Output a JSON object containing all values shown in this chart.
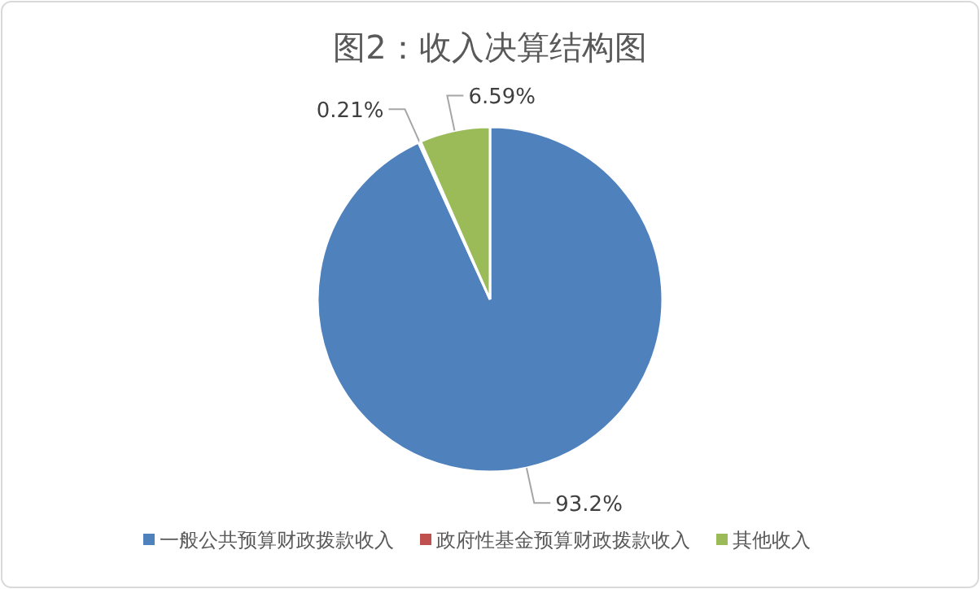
{
  "chart_data": {
    "type": "pie",
    "title": "图2：收入决算结构图",
    "categories": [
      "一般公共预算财政拨款收入",
      "政府性基金预算财政拨款收入",
      "其他收入"
    ],
    "values": [
      93.2,
      0.21,
      6.59
    ],
    "value_labels": [
      "93.2%",
      "0.21%",
      "6.59%"
    ],
    "colors": [
      "#4f81bd",
      "#c0504d",
      "#9bbb59"
    ],
    "legend": "bottom"
  }
}
